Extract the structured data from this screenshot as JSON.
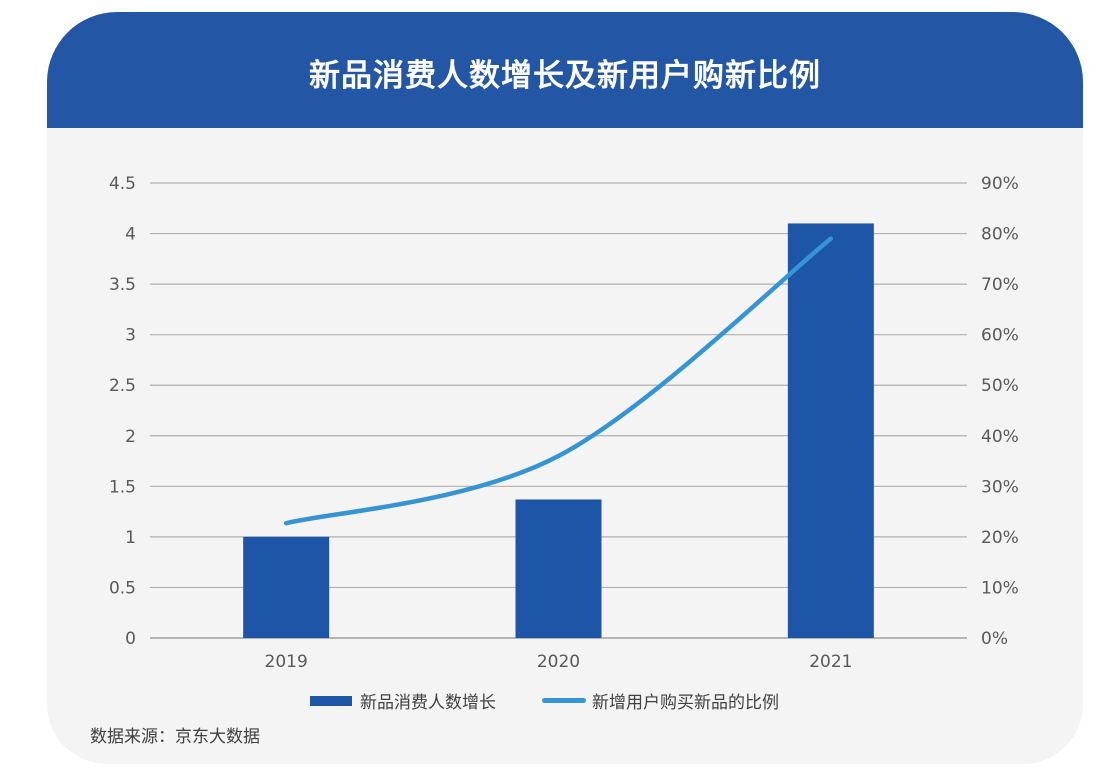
{
  "title": "新品消费人数增长及新用户购新比例",
  "source": "数据来源：京东大数据",
  "colors": {
    "header": "#2456a6",
    "bar": "#1d56a6",
    "line": "#3595d4",
    "background": "#f4f4f4",
    "grid": "#a6a6a6"
  },
  "legend": {
    "bar_label": "新品消费人数增长",
    "line_label": "新增用户购买新品的比例"
  },
  "chart_data": {
    "type": "bar+line",
    "title": "新品消费人数增长及新用户购新比例",
    "categories": [
      "2019",
      "2020",
      "2021"
    ],
    "series": [
      {
        "name": "新品消费人数增长",
        "type": "bar",
        "axis": "left",
        "values": [
          1.0,
          1.37,
          4.1
        ]
      },
      {
        "name": "新增用户购买新品的比例",
        "type": "line",
        "axis": "right",
        "values": [
          0.227,
          0.36,
          0.79
        ]
      }
    ],
    "left_axis": {
      "ticks": [
        "0",
        "0.5",
        "1",
        "1.5",
        "2",
        "2.5",
        "3",
        "3.5",
        "4",
        "4.5"
      ],
      "range": [
        0,
        4.5
      ]
    },
    "right_axis": {
      "ticks": [
        "0%",
        "10%",
        "20%",
        "30%",
        "40%",
        "50%",
        "60%",
        "70%",
        "80%",
        "90%"
      ],
      "range": [
        0,
        0.9
      ]
    },
    "grid": true,
    "legend_position": "bottom",
    "xlabel": "",
    "ylabel": ""
  }
}
